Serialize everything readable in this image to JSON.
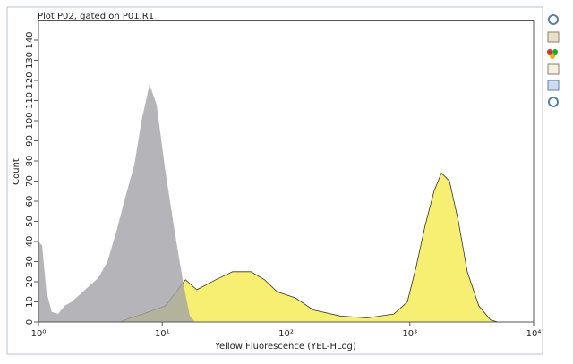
{
  "chart_data": {
    "type": "area",
    "title": "Plot P02, gated on P01.R1",
    "xlabel": "Yellow Fluorescence (YEL-HLog)",
    "ylabel": "Count",
    "xscale": "log",
    "xlim": [
      1,
      10000
    ],
    "xticks": [
      {
        "value": 1,
        "label": "10⁰"
      },
      {
        "value": 10,
        "label": "10¹"
      },
      {
        "value": 100,
        "label": "10²"
      },
      {
        "value": 1000,
        "label": "10³"
      },
      {
        "value": 10000,
        "label": "10⁴"
      }
    ],
    "ylim": [
      0,
      150
    ],
    "yticks": [
      0,
      10,
      20,
      30,
      40,
      50,
      60,
      70,
      80,
      90,
      100,
      110,
      120,
      130,
      140
    ],
    "series": [
      {
        "color": "#f6ef72",
        "x": [
          4.6,
          5.5,
          7,
          10.6,
          13.7,
          15.4,
          19,
          27,
          37,
          52,
          67,
          85,
          119,
          166,
          274,
          452,
          744,
          955,
          1130,
          1330,
          1570,
          1800,
          2090,
          2470,
          2910,
          3610,
          4490,
          5140
        ],
        "values": [
          0,
          2,
          4,
          8,
          17,
          21,
          16,
          21,
          25,
          25,
          21,
          15,
          12,
          6,
          3,
          2,
          4,
          10,
          28,
          48,
          65,
          74,
          70,
          50,
          25,
          8,
          1,
          0
        ]
      },
      {
        "color": "#a3a3a8",
        "x": [
          1,
          1.07,
          1.16,
          1.28,
          1.44,
          1.62,
          1.85,
          2.19,
          2.58,
          3.05,
          3.61,
          4.26,
          5.03,
          5.94,
          6.8,
          7.9,
          9,
          10.6,
          12.6,
          14.9,
          16.7,
          18.4
        ],
        "values": [
          40,
          38,
          15,
          5,
          4,
          8,
          10,
          14,
          18,
          22,
          30,
          45,
          62,
          78,
          100,
          118,
          108,
          75,
          45,
          18,
          3,
          0
        ]
      }
    ]
  }
}
